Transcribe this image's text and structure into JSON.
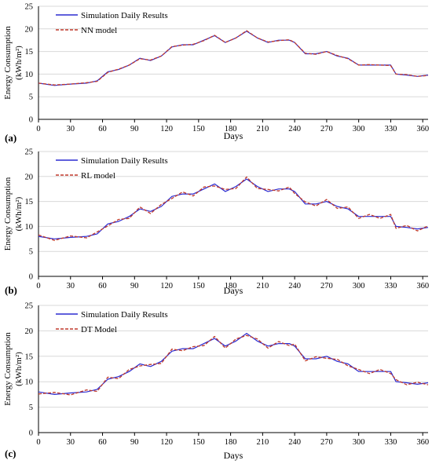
{
  "chart_data": [
    {
      "type": "line",
      "panel_label": "(a)",
      "xlabel": "Days",
      "ylabel_line1": "Energy Consumption",
      "ylabel_line2": "(kWh/m²)",
      "xlim": [
        0,
        365
      ],
      "ylim": [
        0,
        25
      ],
      "xticks": [
        0,
        30,
        60,
        90,
        120,
        150,
        180,
        210,
        240,
        270,
        300,
        330,
        360
      ],
      "yticks": [
        0,
        5,
        10,
        15,
        20,
        25
      ],
      "grid": "horizontal",
      "legend_position": "top-left",
      "series": [
        {
          "name": "Simulation Daily Results",
          "color": "#2b2bd1",
          "style": "solid",
          "x": [
            0,
            15,
            30,
            45,
            55,
            65,
            75,
            85,
            95,
            105,
            115,
            125,
            135,
            145,
            155,
            165,
            175,
            185,
            195,
            205,
            215,
            225,
            235,
            240,
            250,
            260,
            270,
            280,
            290,
            300,
            310,
            320,
            330,
            335,
            345,
            355,
            365
          ],
          "y": [
            8,
            7.5,
            7.8,
            8,
            8.5,
            10.5,
            11,
            12,
            13.5,
            13,
            14,
            16,
            16.5,
            16.5,
            17.5,
            18.5,
            17,
            18,
            19.5,
            18,
            17,
            17.5,
            17.5,
            17,
            14.5,
            14.5,
            15,
            14,
            13.5,
            12,
            12,
            12,
            12,
            10,
            9.8,
            9.5,
            9.8
          ]
        },
        {
          "name": "NN model",
          "color": "#c0392b",
          "style": "dashed",
          "x": [
            0,
            15,
            30,
            45,
            55,
            65,
            75,
            85,
            95,
            105,
            115,
            125,
            135,
            145,
            155,
            165,
            175,
            185,
            195,
            205,
            215,
            225,
            235,
            240,
            250,
            260,
            270,
            280,
            290,
            300,
            310,
            320,
            330,
            335,
            345,
            355,
            365
          ],
          "y": [
            8,
            7.6,
            7.8,
            8.1,
            8.4,
            10.4,
            11.1,
            12,
            13.4,
            13.1,
            14,
            16.1,
            16.4,
            16.6,
            17.4,
            18.6,
            17,
            18,
            19.6,
            18,
            17.1,
            17.4,
            17.6,
            17,
            14.6,
            14.4,
            15,
            14.1,
            13.4,
            12,
            12.1,
            12,
            11.9,
            10,
            9.9,
            9.5,
            9.7
          ]
        }
      ]
    },
    {
      "type": "line",
      "panel_label": "(b)",
      "xlabel": "Days",
      "ylabel_line1": "Energy Consumption",
      "ylabel_line2": "(kWh/m²)",
      "xlim": [
        0,
        365
      ],
      "ylim": [
        0,
        25
      ],
      "xticks": [
        0,
        30,
        60,
        90,
        120,
        150,
        180,
        210,
        240,
        270,
        300,
        330,
        360
      ],
      "yticks": [
        0,
        5,
        10,
        15,
        20,
        25
      ],
      "grid": "horizontal",
      "legend_position": "top-left",
      "series": [
        {
          "name": "Simulation Daily Results",
          "color": "#2b2bd1",
          "style": "solid",
          "x": [
            0,
            15,
            30,
            45,
            55,
            65,
            75,
            85,
            95,
            105,
            115,
            125,
            135,
            145,
            155,
            165,
            175,
            185,
            195,
            205,
            215,
            225,
            235,
            240,
            250,
            260,
            270,
            280,
            290,
            300,
            310,
            320,
            330,
            335,
            345,
            355,
            365
          ],
          "y": [
            8,
            7.5,
            7.8,
            8,
            8.5,
            10.5,
            11,
            12,
            13.5,
            13,
            14,
            16,
            16.5,
            16.5,
            17.5,
            18.5,
            17,
            18,
            19.5,
            18,
            17,
            17.5,
            17.5,
            17,
            14.5,
            14.5,
            15,
            14,
            13.5,
            12,
            12,
            12,
            12,
            10,
            9.8,
            9.5,
            9.8
          ]
        },
        {
          "name": "RL model",
          "color": "#c0392b",
          "style": "dashed",
          "x": [
            0,
            15,
            30,
            45,
            55,
            65,
            75,
            85,
            95,
            105,
            115,
            125,
            135,
            145,
            155,
            165,
            175,
            185,
            195,
            205,
            215,
            225,
            235,
            240,
            250,
            260,
            270,
            280,
            290,
            300,
            310,
            320,
            330,
            335,
            345,
            355,
            365
          ],
          "y": [
            8.3,
            7.2,
            8.1,
            7.7,
            8.9,
            10.1,
            11.4,
            11.6,
            13.9,
            12.6,
            14.4,
            15.6,
            16.9,
            16.1,
            17.9,
            18.1,
            17.4,
            17.6,
            19.9,
            17.6,
            17.4,
            17.1,
            17.9,
            16.6,
            14.9,
            14.1,
            15.4,
            13.6,
            13.9,
            11.6,
            12.4,
            11.6,
            12.4,
            9.6,
            10.2,
            9.1,
            10.1
          ]
        }
      ]
    },
    {
      "type": "line",
      "panel_label": "(c)",
      "xlabel": "Days",
      "ylabel_line1": "Energy Consumption",
      "ylabel_line2": "(kWh/m²)",
      "xlim": [
        0,
        365
      ],
      "ylim": [
        0,
        25
      ],
      "xticks": [
        0,
        30,
        60,
        90,
        120,
        150,
        180,
        210,
        240,
        270,
        300,
        330,
        360
      ],
      "yticks": [
        0,
        5,
        10,
        15,
        20,
        25
      ],
      "grid": "horizontal",
      "legend_position": "top-left",
      "series": [
        {
          "name": "Simulation Daily Results",
          "color": "#2b2bd1",
          "style": "solid",
          "x": [
            0,
            15,
            30,
            45,
            55,
            65,
            75,
            85,
            95,
            105,
            115,
            125,
            135,
            145,
            155,
            165,
            175,
            185,
            195,
            205,
            215,
            225,
            235,
            240,
            250,
            260,
            270,
            280,
            290,
            300,
            310,
            320,
            330,
            335,
            345,
            355,
            365
          ],
          "y": [
            8,
            7.5,
            7.8,
            8,
            8.5,
            10.5,
            11,
            12,
            13.5,
            13,
            14,
            16,
            16.5,
            16.5,
            17.5,
            18.5,
            17,
            18,
            19.5,
            18,
            17,
            17.5,
            17.5,
            17,
            14.5,
            14.5,
            15,
            14,
            13.5,
            12,
            12,
            12,
            12,
            10,
            9.8,
            9.5,
            9.8
          ]
        },
        {
          "name": "DT Model",
          "color": "#c0392b",
          "style": "dashed",
          "x": [
            0,
            15,
            30,
            45,
            55,
            65,
            75,
            85,
            95,
            105,
            115,
            125,
            135,
            145,
            155,
            165,
            175,
            185,
            195,
            205,
            215,
            225,
            235,
            240,
            250,
            260,
            270,
            280,
            290,
            300,
            310,
            320,
            330,
            335,
            345,
            355,
            365
          ],
          "y": [
            7.6,
            7.9,
            7.4,
            8.4,
            8.1,
            10.9,
            10.6,
            12.4,
            13.1,
            13.4,
            13.6,
            16.4,
            16.1,
            16.9,
            17.1,
            18.9,
            16.6,
            18.4,
            19.1,
            18.4,
            16.6,
            17.9,
            17.1,
            17.4,
            14.1,
            14.9,
            14.6,
            14.4,
            13.1,
            12.4,
            11.6,
            12.4,
            11.6,
            10.4,
            9.4,
            9.9,
            9.4
          ]
        }
      ]
    }
  ]
}
